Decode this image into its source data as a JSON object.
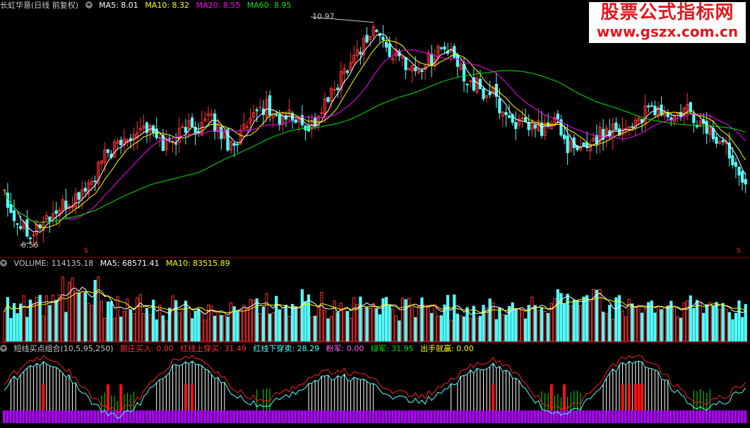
{
  "price_header": {
    "stock": "长虹华意(日线 前复权)",
    "ma5": "MA5: 8.01",
    "ma10": "MA10: 8.32",
    "ma20": "MA20: 8.55",
    "ma60": "MA60: 8.95"
  },
  "volume_header": {
    "volume": "VOLUME: 114135.18",
    "ma5": "MA5: 68571.41",
    "ma10": "MA10: 83515.89"
  },
  "indicator_header": {
    "name": "短线买点组合(10,5,95,250)",
    "buy": "跟庄买入: 0.00",
    "red_up": "红线上穿买: 31.49",
    "red_down": "红线下穿卖: 28.29",
    "pink": "粉军: 0.00",
    "green": "绿军: 31.95",
    "win": "出手就赢: 0.00"
  },
  "price_labels": {
    "high": "10.97",
    "low": "6.56",
    "marker": "S"
  },
  "watermark": {
    "line1": "股票公式指标网",
    "line2": "www.gszx.com.cn"
  },
  "colors": {
    "up": "#ff3232",
    "down": "#54ffff",
    "ma5": "#ffffff",
    "ma10": "#ffff00",
    "ma20": "#ff00ff",
    "ma60": "#00e600",
    "divider": "#8b0000"
  },
  "chart_data": {
    "type": "candlestick",
    "close_path": [
      7.6,
      7.1,
      6.9,
      6.8,
      6.7,
      6.9,
      7.0,
      7.1,
      7.2,
      7.3,
      7.4,
      7.6,
      7.7,
      8.0,
      8.3,
      8.4,
      8.5,
      8.7,
      8.8,
      8.9,
      8.8,
      8.6,
      8.5,
      8.6,
      8.7,
      8.9,
      8.8,
      8.9,
      9.0,
      8.9,
      8.7,
      8.5,
      8.6,
      8.8,
      8.9,
      9.2,
      9.3,
      9.1,
      9.0,
      9.1,
      9.0,
      8.9,
      8.9,
      9.0,
      9.3,
      9.5,
      9.8,
      10.1,
      10.3,
      10.5,
      10.7,
      10.9,
      10.6,
      10.4,
      10.3,
      10.2,
      10.1,
      10.0,
      10.2,
      10.3,
      10.5,
      10.4,
      10.2,
      10.0,
      9.8,
      9.7,
      9.5,
      9.6,
      9.3,
      9.1,
      9.0,
      8.9,
      8.8,
      8.9,
      8.8,
      8.9,
      9.0,
      8.6,
      8.4,
      8.3,
      8.5,
      8.6,
      8.7,
      8.8,
      8.9,
      8.8,
      8.9,
      9.0,
      9.1,
      9.2,
      9.2,
      9.1,
      9.0,
      9.1,
      9.2,
      9.0,
      8.9,
      8.8,
      8.6,
      8.5,
      8.3,
      8.0,
      7.8
    ]
  }
}
